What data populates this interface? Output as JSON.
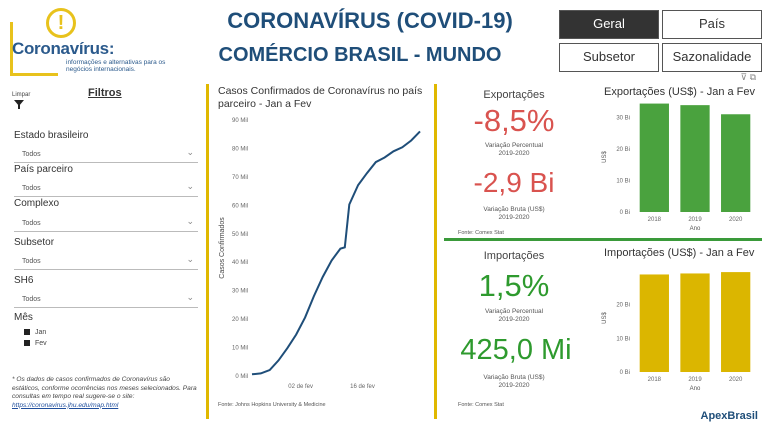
{
  "header": {
    "logo_badge": "!",
    "logo_name": "Coronavírus:",
    "logo_sub": "informações e alternativas para os negócios internacionais.",
    "title_line1": "CORONAVÍRUS (COVID-19)",
    "title_line2": "COMÉRCIO BRASIL - MUNDO"
  },
  "nav": {
    "geral": "Geral",
    "pais": "País",
    "subsetor": "Subsetor",
    "sazonalidade": "Sazonalidade"
  },
  "filters": {
    "limpar": "Limpar",
    "title": "Filtros",
    "estado_label": "Estado brasileiro",
    "estado_value": "Todos",
    "pais_label": "País parceiro",
    "pais_value": "Todos",
    "complexo_label": "Complexo",
    "complexo_value": "Todos",
    "subsetor_label": "Subsetor",
    "subsetor_value": "Todos",
    "sh6_label": "SH6",
    "sh6_value": "Todos",
    "mes_label": "Mês",
    "mes_jan": "Jan",
    "mes_fev": "Fev",
    "footnote": "* Os dados de casos confirmados de Coronavírus são estáticos, conforme ocorrências nos meses selecionados. Para consultas em tempo real sugere-se o site:",
    "footnote_link": "https://coronavirus.jhu.edu/map.html"
  },
  "line_chart": {
    "title": "Casos Confirmados de Coronavírus no país parceiro - Jan a Fev",
    "source": "Fonte: Johns Hopkins University & Medicine",
    "color": "#1f4e79"
  },
  "exportacoes": {
    "title": "Exportações",
    "pct": "-8,5%",
    "pct_label": "Variação Percentual",
    "pct_period": "2019-2020",
    "bruta": "-2,9 Bi",
    "bruta_label": "Variação Bruta (US$)",
    "bruta_period": "2019-2020",
    "source": "Fonte: Comex Stat",
    "color": "#d9534f"
  },
  "importacoes": {
    "title": "Importações",
    "pct": "1,5%",
    "pct_label": "Variação Percentual",
    "pct_period": "2019-2020",
    "bruta": "425,0 Mi",
    "bruta_label": "Variação Bruta (US$)",
    "bruta_period": "2019-2020",
    "source": "Fonte: Comex Stat",
    "color": "#2e9a2e"
  },
  "footer_logo": "ApexBrasil",
  "chart_data": [
    {
      "type": "line",
      "title": "Casos Confirmados de Coronavírus no país parceiro - Jan a Fev",
      "ylabel": "Casos Confirmados",
      "ylim": [
        0,
        90
      ],
      "yticks": [
        "0 Mil",
        "10 Mil",
        "20 Mil",
        "30 Mil",
        "40 Mil",
        "50 Mil",
        "60 Mil",
        "70 Mil",
        "80 Mil",
        "90 Mil"
      ],
      "xticks": [
        "02 de fev",
        "16 de fev"
      ],
      "x": [
        "2020-01-22",
        "2020-01-24",
        "2020-01-26",
        "2020-01-28",
        "2020-01-30",
        "2020-02-01",
        "2020-02-03",
        "2020-02-05",
        "2020-02-07",
        "2020-02-09",
        "2020-02-11",
        "2020-02-12",
        "2020-02-13",
        "2020-02-15",
        "2020-02-17",
        "2020-02-19",
        "2020-02-21",
        "2020-02-23",
        "2020-02-25",
        "2020-02-27",
        "2020-02-29"
      ],
      "values": [
        0.6,
        0.9,
        2.1,
        5.5,
        9.8,
        14.6,
        20.6,
        28.1,
        34.8,
        40.6,
        44.8,
        45.2,
        60.3,
        67.1,
        71.3,
        75.2,
        76.8,
        79.0,
        80.4,
        82.8,
        86.0
      ]
    },
    {
      "type": "bar",
      "title": "Exportações (US$) - Jan a Fev",
      "xlabel": "Ano",
      "ylabel": "US$",
      "categories": [
        "2018",
        "2019",
        "2020"
      ],
      "values": [
        34.5,
        34.0,
        31.1
      ],
      "ylim": [
        0,
        35
      ],
      "yticks": [
        "0 Bi",
        "10 Bi",
        "20 Bi",
        "30 Bi"
      ],
      "color": "#4aa23e"
    },
    {
      "type": "bar",
      "title": "Importações (US$) - Jan a Fev",
      "xlabel": "Ano",
      "ylabel": "US$",
      "categories": [
        "2018",
        "2019",
        "2020"
      ],
      "values": [
        28.9,
        29.2,
        29.6
      ],
      "ylim": [
        0,
        32
      ],
      "yticks": [
        "0 Bi",
        "10 Bi",
        "20 Bi"
      ],
      "color": "#dbb600"
    }
  ]
}
